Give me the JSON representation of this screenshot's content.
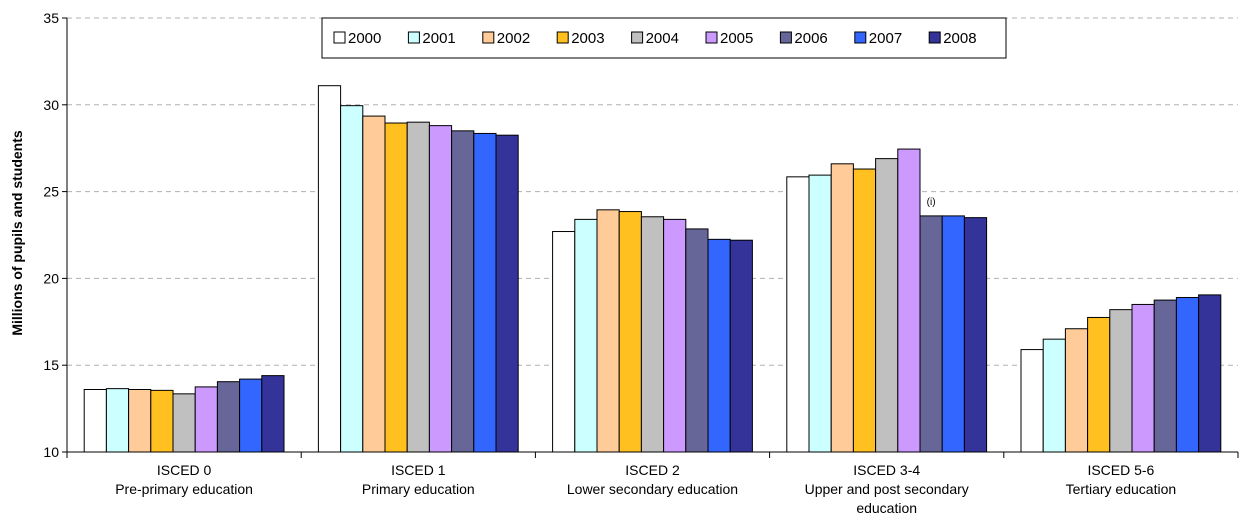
{
  "chart_data": {
    "type": "bar",
    "title": "",
    "xlabel": "",
    "ylabel": "Millions of pupils and students",
    "ylim": [
      10,
      35
    ],
    "yticks": [
      10,
      15,
      20,
      25,
      30,
      35
    ],
    "grid": true,
    "legend_position": "top-center",
    "categories": [
      [
        "ISCED 0",
        "Pre-primary education"
      ],
      [
        "ISCED 1",
        "Primary education"
      ],
      [
        "ISCED 2",
        "Lower secondary education"
      ],
      [
        "ISCED 3-4",
        "Upper and post secondary",
        "education"
      ],
      [
        "ISCED 5-6",
        "Tertiary education"
      ]
    ],
    "series": [
      {
        "name": "2000",
        "color": "#FFFFFF",
        "values": [
          13.6,
          31.1,
          22.7,
          25.85,
          15.9
        ]
      },
      {
        "name": "2001",
        "color": "#CCFFFF",
        "values": [
          13.65,
          29.95,
          23.4,
          25.95,
          16.5
        ]
      },
      {
        "name": "2002",
        "color": "#FFCC99",
        "values": [
          13.6,
          29.35,
          23.95,
          26.6,
          17.1
        ]
      },
      {
        "name": "2003",
        "color": "#FFC020",
        "values": [
          13.55,
          28.95,
          23.85,
          26.3,
          17.75
        ]
      },
      {
        "name": "2004",
        "color": "#C0C0C0",
        "values": [
          13.35,
          29.0,
          23.55,
          26.9,
          18.2
        ]
      },
      {
        "name": "2005",
        "color": "#CC99FF",
        "values": [
          13.75,
          28.8,
          23.4,
          27.45,
          18.5
        ]
      },
      {
        "name": "2006",
        "color": "#666699",
        "values": [
          14.05,
          28.5,
          22.85,
          23.6,
          18.75
        ]
      },
      {
        "name": "2007",
        "color": "#3366FF",
        "values": [
          14.2,
          28.35,
          22.25,
          23.6,
          18.9
        ]
      },
      {
        "name": "2008",
        "color": "#333399",
        "values": [
          14.4,
          28.25,
          22.2,
          23.5,
          19.05
        ]
      }
    ],
    "annotations": [
      {
        "text": "(i)",
        "category_index": 3,
        "series_index": 6
      }
    ]
  }
}
